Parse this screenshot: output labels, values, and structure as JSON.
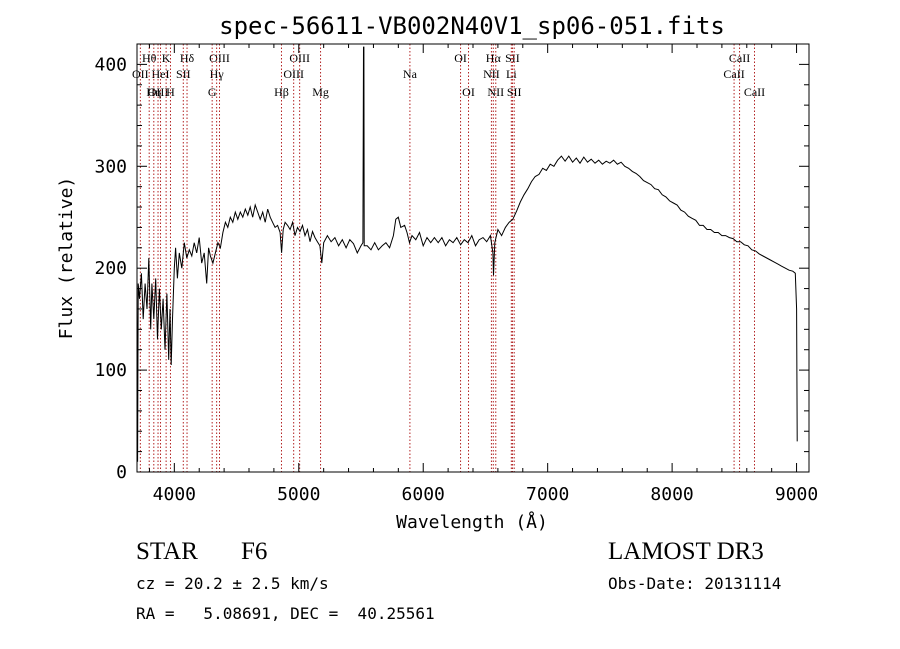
{
  "chart_data": {
    "type": "line",
    "title": "spec-56611-VB002N40V1_sp06-051.fits",
    "xlabel": "Wavelength (Å)",
    "ylabel": "Flux (relative)",
    "xlim": [
      3700,
      9100
    ],
    "ylim": [
      0,
      420
    ],
    "xticks": [
      4000,
      5000,
      6000,
      7000,
      8000,
      9000
    ],
    "yticks": [
      0,
      100,
      200,
      300,
      400
    ],
    "series": [
      {
        "name": "flux",
        "points": [
          [
            3700,
            160
          ],
          [
            3705,
            10
          ],
          [
            3710,
            185
          ],
          [
            3720,
            170
          ],
          [
            3735,
            195
          ],
          [
            3750,
            150
          ],
          [
            3765,
            185
          ],
          [
            3780,
            160
          ],
          [
            3795,
            210
          ],
          [
            3810,
            140
          ],
          [
            3820,
            185
          ],
          [
            3835,
            150
          ],
          [
            3850,
            190
          ],
          [
            3865,
            130
          ],
          [
            3880,
            180
          ],
          [
            3895,
            140
          ],
          [
            3910,
            170
          ],
          [
            3925,
            120
          ],
          [
            3940,
            175
          ],
          [
            3955,
            110
          ],
          [
            3965,
            160
          ],
          [
            3975,
            105
          ],
          [
            3985,
            150
          ],
          [
            4000,
            200
          ],
          [
            4010,
            220
          ],
          [
            4025,
            190
          ],
          [
            4040,
            215
          ],
          [
            4060,
            200
          ],
          [
            4080,
            225
          ],
          [
            4100,
            210
          ],
          [
            4120,
            218
          ],
          [
            4140,
            212
          ],
          [
            4160,
            225
          ],
          [
            4180,
            215
          ],
          [
            4200,
            230
          ],
          [
            4220,
            205
          ],
          [
            4240,
            215
          ],
          [
            4260,
            185
          ],
          [
            4275,
            220
          ],
          [
            4290,
            212
          ],
          [
            4310,
            205
          ],
          [
            4330,
            215
          ],
          [
            4350,
            225
          ],
          [
            4370,
            220
          ],
          [
            4390,
            235
          ],
          [
            4410,
            245
          ],
          [
            4430,
            240
          ],
          [
            4450,
            250
          ],
          [
            4470,
            245
          ],
          [
            4490,
            255
          ],
          [
            4510,
            248
          ],
          [
            4530,
            255
          ],
          [
            4550,
            250
          ],
          [
            4570,
            258
          ],
          [
            4590,
            252
          ],
          [
            4610,
            260
          ],
          [
            4630,
            250
          ],
          [
            4650,
            262
          ],
          [
            4670,
            255
          ],
          [
            4690,
            248
          ],
          [
            4710,
            255
          ],
          [
            4730,
            245
          ],
          [
            4750,
            258
          ],
          [
            4770,
            250
          ],
          [
            4790,
            245
          ],
          [
            4810,
            240
          ],
          [
            4830,
            242
          ],
          [
            4850,
            235
          ],
          [
            4862,
            215
          ],
          [
            4875,
            238
          ],
          [
            4890,
            245
          ],
          [
            4910,
            242
          ],
          [
            4930,
            238
          ],
          [
            4950,
            245
          ],
          [
            4970,
            232
          ],
          [
            4990,
            240
          ],
          [
            5010,
            236
          ],
          [
            5030,
            242
          ],
          [
            5050,
            232
          ],
          [
            5070,
            238
          ],
          [
            5090,
            226
          ],
          [
            5110,
            236
          ],
          [
            5130,
            230
          ],
          [
            5150,
            226
          ],
          [
            5170,
            222
          ],
          [
            5185,
            205
          ],
          [
            5200,
            225
          ],
          [
            5230,
            232
          ],
          [
            5260,
            226
          ],
          [
            5290,
            230
          ],
          [
            5320,
            222
          ],
          [
            5350,
            228
          ],
          [
            5380,
            220
          ],
          [
            5410,
            228
          ],
          [
            5440,
            224
          ],
          [
            5470,
            215
          ],
          [
            5500,
            222
          ],
          [
            5515,
            225
          ],
          [
            5520,
            417
          ],
          [
            5523,
            417
          ],
          [
            5526,
            222
          ],
          [
            5550,
            222
          ],
          [
            5580,
            218
          ],
          [
            5610,
            225
          ],
          [
            5640,
            218
          ],
          [
            5670,
            222
          ],
          [
            5700,
            225
          ],
          [
            5730,
            220
          ],
          [
            5760,
            232
          ],
          [
            5780,
            248
          ],
          [
            5800,
            250
          ],
          [
            5820,
            240
          ],
          [
            5850,
            242
          ],
          [
            5870,
            235
          ],
          [
            5890,
            225
          ],
          [
            5910,
            232
          ],
          [
            5940,
            228
          ],
          [
            5970,
            235
          ],
          [
            6000,
            222
          ],
          [
            6030,
            230
          ],
          [
            6060,
            225
          ],
          [
            6090,
            230
          ],
          [
            6120,
            225
          ],
          [
            6150,
            230
          ],
          [
            6180,
            222
          ],
          [
            6210,
            228
          ],
          [
            6240,
            225
          ],
          [
            6270,
            230
          ],
          [
            6300,
            223
          ],
          [
            6330,
            228
          ],
          [
            6360,
            225
          ],
          [
            6390,
            232
          ],
          [
            6420,
            222
          ],
          [
            6450,
            228
          ],
          [
            6480,
            230
          ],
          [
            6510,
            226
          ],
          [
            6540,
            232
          ],
          [
            6560,
            215
          ],
          [
            6565,
            193
          ],
          [
            6575,
            225
          ],
          [
            6600,
            238
          ],
          [
            6630,
            232
          ],
          [
            6660,
            240
          ],
          [
            6690,
            245
          ],
          [
            6720,
            248
          ],
          [
            6750,
            256
          ],
          [
            6780,
            265
          ],
          [
            6810,
            272
          ],
          [
            6840,
            278
          ],
          [
            6870,
            285
          ],
          [
            6900,
            290
          ],
          [
            6930,
            292
          ],
          [
            6960,
            298
          ],
          [
            6990,
            296
          ],
          [
            7020,
            302
          ],
          [
            7050,
            300
          ],
          [
            7080,
            306
          ],
          [
            7110,
            310
          ],
          [
            7140,
            305
          ],
          [
            7170,
            310
          ],
          [
            7200,
            304
          ],
          [
            7230,
            308
          ],
          [
            7260,
            303
          ],
          [
            7290,
            309
          ],
          [
            7320,
            304
          ],
          [
            7350,
            307
          ],
          [
            7380,
            303
          ],
          [
            7410,
            306
          ],
          [
            7440,
            302
          ],
          [
            7470,
            305
          ],
          [
            7500,
            303
          ],
          [
            7530,
            306
          ],
          [
            7560,
            302
          ],
          [
            7590,
            304
          ],
          [
            7620,
            300
          ],
          [
            7650,
            298
          ],
          [
            7680,
            295
          ],
          [
            7710,
            293
          ],
          [
            7740,
            290
          ],
          [
            7770,
            286
          ],
          [
            7800,
            284
          ],
          [
            7830,
            282
          ],
          [
            7860,
            278
          ],
          [
            7890,
            277
          ],
          [
            7920,
            272
          ],
          [
            7950,
            270
          ],
          [
            7980,
            266
          ],
          [
            8010,
            264
          ],
          [
            8040,
            262
          ],
          [
            8070,
            257
          ],
          [
            8100,
            255
          ],
          [
            8130,
            251
          ],
          [
            8160,
            249
          ],
          [
            8190,
            247
          ],
          [
            8220,
            242
          ],
          [
            8250,
            242
          ],
          [
            8280,
            238
          ],
          [
            8310,
            238
          ],
          [
            8340,
            235
          ],
          [
            8370,
            235
          ],
          [
            8400,
            232
          ],
          [
            8430,
            232
          ],
          [
            8460,
            230
          ],
          [
            8490,
            229
          ],
          [
            8520,
            226
          ],
          [
            8550,
            226
          ],
          [
            8580,
            223
          ],
          [
            8610,
            222
          ],
          [
            8640,
            218
          ],
          [
            8670,
            217
          ],
          [
            8700,
            214
          ],
          [
            8730,
            212
          ],
          [
            8760,
            210
          ],
          [
            8790,
            208
          ],
          [
            8820,
            206
          ],
          [
            8850,
            204
          ],
          [
            8880,
            202
          ],
          [
            8910,
            200
          ],
          [
            8940,
            198
          ],
          [
            8970,
            197
          ],
          [
            8990,
            195
          ],
          [
            9000,
            160
          ],
          [
            9005,
            30
          ]
        ]
      }
    ],
    "lines": [
      {
        "label": "Hθ",
        "x": 3798,
        "row": 1
      },
      {
        "label": "OII",
        "x": 3727,
        "row": 2
      },
      {
        "label": "OIII",
        "x": 3869,
        "row": 3
      },
      {
        "label": "K",
        "x": 3934,
        "row": 1
      },
      {
        "label": "H",
        "x": 3969,
        "row": 3
      },
      {
        "label": "HeI",
        "x": 3889,
        "row": 2
      },
      {
        "label": "Hη",
        "x": 3835,
        "row": 3
      },
      {
        "label": "Hδ",
        "x": 4102,
        "row": 1
      },
      {
        "label": "SII",
        "x": 4072,
        "row": 2
      },
      {
        "label": "OIII",
        "x": 4363,
        "row": 1
      },
      {
        "label": "Hγ",
        "x": 4340,
        "row": 2
      },
      {
        "label": "G",
        "x": 4304,
        "row": 3
      },
      {
        "label": "Hβ",
        "x": 4861,
        "row": 3
      },
      {
        "label": "OIII",
        "x": 5007,
        "row": 1
      },
      {
        "label": "OIII",
        "x": 4959,
        "row": 2
      },
      {
        "label": "Mg",
        "x": 5175,
        "row": 3
      },
      {
        "label": "Na",
        "x": 5893,
        "row": 2
      },
      {
        "label": "OI",
        "x": 6300,
        "row": 1
      },
      {
        "label": "OI",
        "x": 6364,
        "row": 3
      },
      {
        "label": "Hα",
        "x": 6563,
        "row": 1
      },
      {
        "label": "NII",
        "x": 6548,
        "row": 2
      },
      {
        "label": "NII",
        "x": 6583,
        "row": 3
      },
      {
        "label": "SII",
        "x": 6717,
        "row": 1
      },
      {
        "label": "Li",
        "x": 6708,
        "row": 2
      },
      {
        "label": "SII",
        "x": 6731,
        "row": 3
      },
      {
        "label": "CaII",
        "x": 8542,
        "row": 1
      },
      {
        "label": "CaII",
        "x": 8498,
        "row": 2
      },
      {
        "label": "CaII",
        "x": 8662,
        "row": 3
      }
    ]
  },
  "info": {
    "object_class": "STAR",
    "subclass": "F6",
    "survey": "LAMOST DR3",
    "redshift": "cz = 20.2 ± 2.5 km/s",
    "obs_date": "Obs-Date: 20131114",
    "coords": "RA =   5.08691, DEC =  40.25561"
  }
}
